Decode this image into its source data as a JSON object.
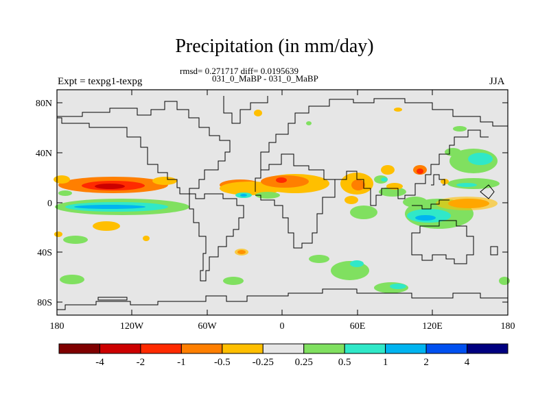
{
  "title": "Precipitation (in mm/day)",
  "stats_line": "rmsd= 0.271717 diff= 0.0195639",
  "cases_line": "031_0_MaBP - 031_0_MaBP",
  "experiment_label": "Expt = texpg1-texpg",
  "season_label": "JJA",
  "axes": {
    "lat_ticks": [
      "80N",
      "40N",
      "0",
      "40S",
      "80S"
    ],
    "lon_ticks": [
      "180",
      "120W",
      "60W",
      "0",
      "60E",
      "120E",
      "180"
    ]
  },
  "colorbar": {
    "colors": [
      "#7f0000",
      "#cc0000",
      "#ff2a00",
      "#ff7f00",
      "#ffbf00",
      "#e6e6e6",
      "#80e060",
      "#30e8c8",
      "#00b4f0",
      "#0050f0",
      "#000080"
    ],
    "labels": [
      "-4",
      "-2",
      "-1",
      "-0.5",
      "-0.25",
      "0.25",
      "0.5",
      "1",
      "2",
      "4"
    ]
  }
}
